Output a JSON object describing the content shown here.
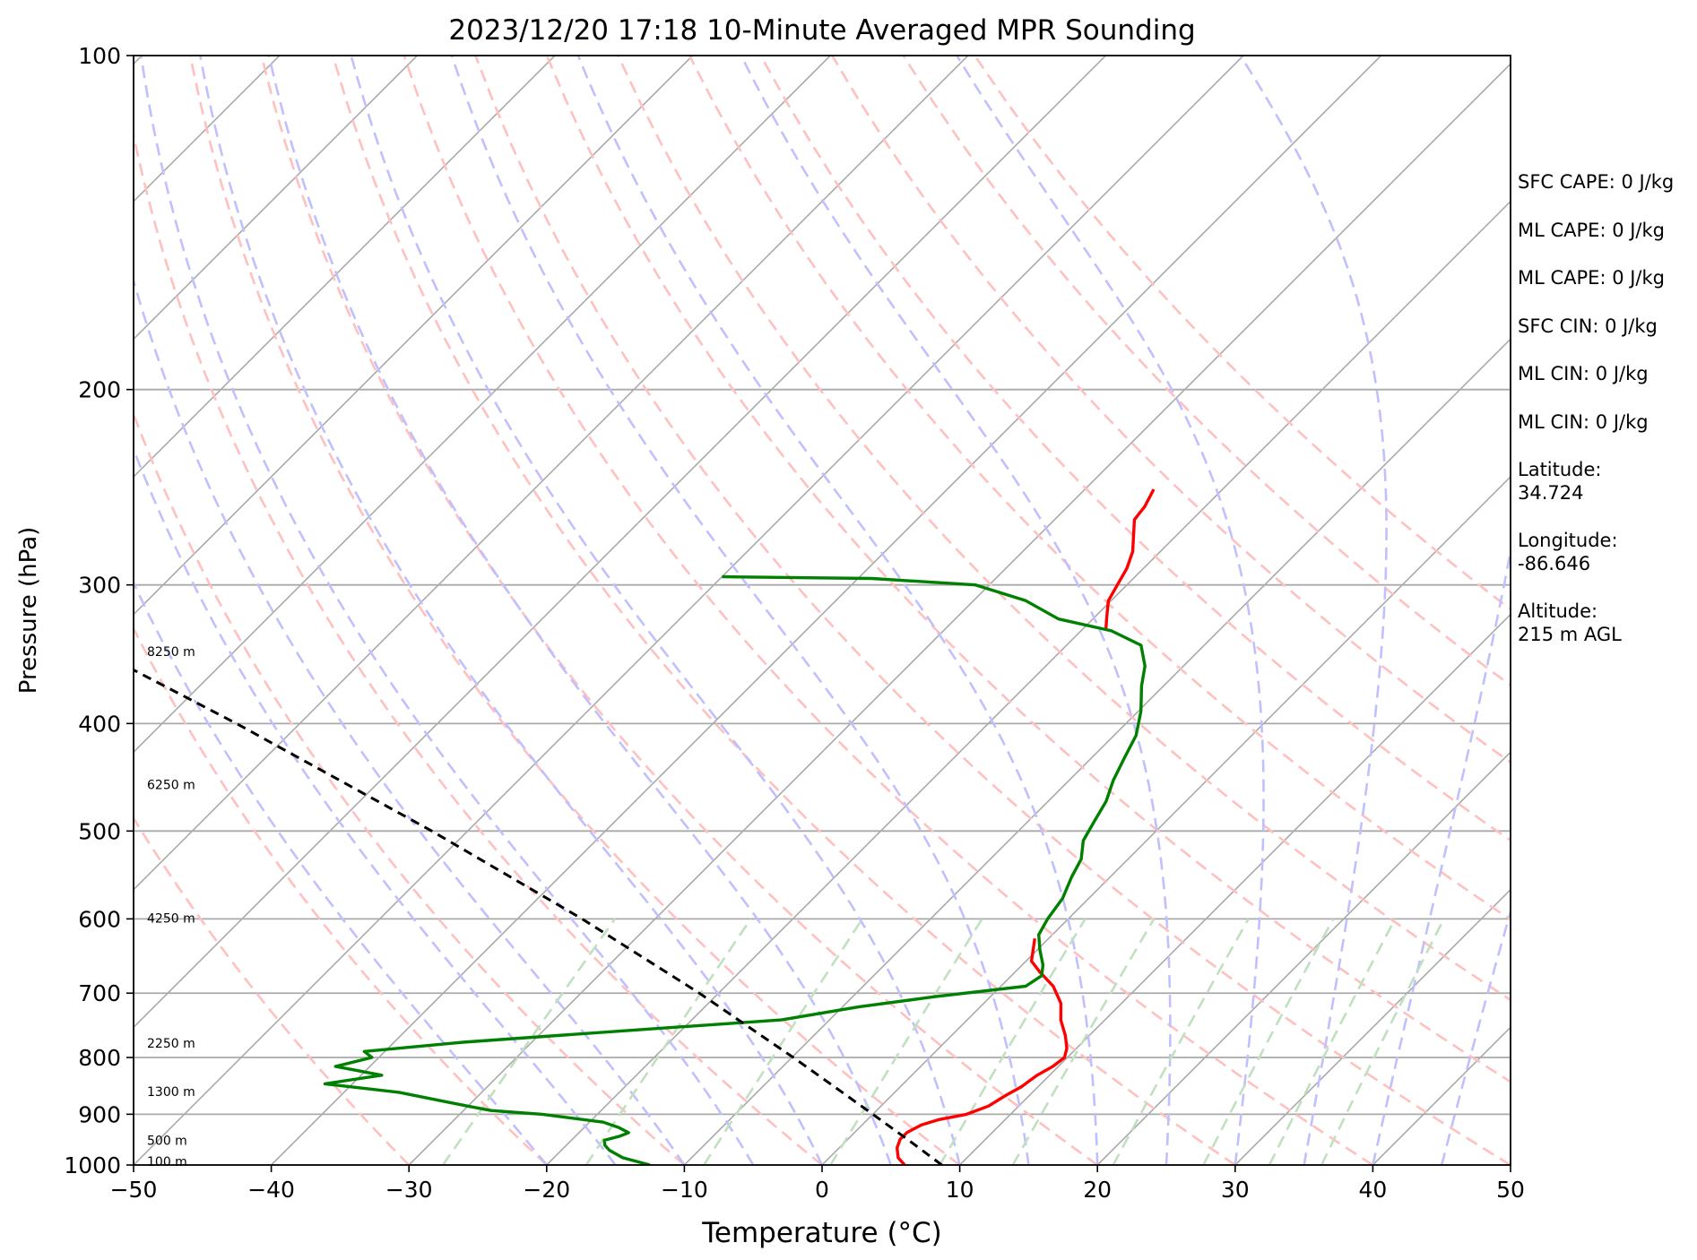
{
  "chart_data": {
    "type": "line",
    "subtype": "skew-t log-p diagram",
    "title": "2023/12/20 17:18 10-Minute Averaged MPR Sounding",
    "xlabel": "Temperature (°C)",
    "ylabel": "Pressure (hPa)",
    "xlim": [
      -50,
      50
    ],
    "ylim": [
      1000,
      100
    ],
    "y_scale": "log",
    "x_ticks": [
      "−50",
      "−40",
      "−30",
      "−20",
      "−10",
      "0",
      "10",
      "20",
      "30",
      "40",
      "50"
    ],
    "y_ticks": [
      "100",
      "200",
      "300",
      "400",
      "500",
      "600",
      "700",
      "800",
      "900",
      "1000"
    ],
    "grid": true,
    "series": [
      {
        "role": "temperature",
        "color": "#ff0000",
        "points": [
          {
            "p": 1000,
            "t": 6.0
          },
          {
            "p": 985,
            "t": 5.0
          },
          {
            "p": 965,
            "t": 4.2
          },
          {
            "p": 948,
            "t": 3.8
          },
          {
            "p": 935,
            "t": 3.8
          },
          {
            "p": 920,
            "t": 4.3
          },
          {
            "p": 910,
            "t": 5.2
          },
          {
            "p": 900,
            "t": 6.8
          },
          {
            "p": 885,
            "t": 7.8
          },
          {
            "p": 865,
            "t": 8.3
          },
          {
            "p": 850,
            "t": 8.8
          },
          {
            "p": 830,
            "t": 9.1
          },
          {
            "p": 815,
            "t": 9.6
          },
          {
            "p": 800,
            "t": 9.8
          },
          {
            "p": 785,
            "t": 9.3
          },
          {
            "p": 765,
            "t": 8.3
          },
          {
            "p": 740,
            "t": 6.8
          },
          {
            "p": 715,
            "t": 5.6
          },
          {
            "p": 690,
            "t": 3.8
          },
          {
            "p": 670,
            "t": 1.8
          },
          {
            "p": 655,
            "t": 0.4
          },
          {
            "p": 625,
            "t": -1.0
          }
        ]
      },
      {
        "role": "temperature-upper",
        "color": "#ff0000",
        "points": [
          {
            "p": 330,
            "t": -18.2
          },
          {
            "p": 320,
            "t": -19.2
          },
          {
            "p": 310,
            "t": -20.2
          },
          {
            "p": 300,
            "t": -20.7
          },
          {
            "p": 290,
            "t": -21.2
          },
          {
            "p": 280,
            "t": -22.0
          },
          {
            "p": 270,
            "t": -23.2
          },
          {
            "p": 262,
            "t": -24.2
          },
          {
            "p": 255,
            "t": -24.4
          },
          {
            "p": 246,
            "t": -25.0
          }
        ]
      },
      {
        "role": "dewpoint",
        "color": "#008000",
        "points": [
          {
            "p": 1000,
            "t": -12.5
          },
          {
            "p": 985,
            "t": -15.0
          },
          {
            "p": 970,
            "t": -16.5
          },
          {
            "p": 960,
            "t": -17.2
          },
          {
            "p": 950,
            "t": -17.6
          },
          {
            "p": 942,
            "t": -16.8
          },
          {
            "p": 935,
            "t": -16.4
          },
          {
            "p": 925,
            "t": -17.5
          },
          {
            "p": 915,
            "t": -19.0
          },
          {
            "p": 900,
            "t": -24.0
          },
          {
            "p": 893,
            "t": -28.0
          },
          {
            "p": 885,
            "t": -30.0
          },
          {
            "p": 860,
            "t": -36.0
          },
          {
            "p": 845,
            "t": -42.0
          },
          {
            "p": 830,
            "t": -38.5
          },
          {
            "p": 815,
            "t": -42.5
          },
          {
            "p": 800,
            "t": -40.5
          },
          {
            "p": 790,
            "t": -41.5
          },
          {
            "p": 775,
            "t": -35.0
          },
          {
            "p": 755,
            "t": -23.0
          },
          {
            "p": 740,
            "t": -13.5
          },
          {
            "p": 720,
            "t": -8.8
          },
          {
            "p": 705,
            "t": -4.0
          },
          {
            "p": 690,
            "t": 1.8
          },
          {
            "p": 675,
            "t": 2.2
          },
          {
            "p": 660,
            "t": 1.5
          },
          {
            "p": 640,
            "t": 0.2
          },
          {
            "p": 620,
            "t": -1.0
          },
          {
            "p": 600,
            "t": -1.5
          },
          {
            "p": 575,
            "t": -1.9
          },
          {
            "p": 550,
            "t": -2.8
          },
          {
            "p": 530,
            "t": -3.4
          },
          {
            "p": 510,
            "t": -4.6
          },
          {
            "p": 490,
            "t": -5.2
          },
          {
            "p": 470,
            "t": -5.8
          },
          {
            "p": 450,
            "t": -6.8
          },
          {
            "p": 430,
            "t": -7.6
          },
          {
            "p": 410,
            "t": -8.4
          },
          {
            "p": 390,
            "t": -9.8
          },
          {
            "p": 370,
            "t": -11.6
          },
          {
            "p": 355,
            "t": -12.8
          },
          {
            "p": 340,
            "t": -14.6
          },
          {
            "p": 330,
            "t": -17.8
          },
          {
            "p": 322,
            "t": -22.5
          },
          {
            "p": 310,
            "t": -26.2
          },
          {
            "p": 300,
            "t": -31.0
          },
          {
            "p": 296,
            "t": -39.0
          },
          {
            "p": 295,
            "t": -50.0
          }
        ]
      },
      {
        "role": "parcel",
        "color": "#000000",
        "dashed": true,
        "points": [
          {
            "p": 1000,
            "t": 8.7
          },
          {
            "p": 950,
            "t": 4.5
          },
          {
            "p": 900,
            "t": 0.0
          },
          {
            "p": 850,
            "t": -4.8
          },
          {
            "p": 800,
            "t": -9.9
          },
          {
            "p": 700,
            "t": -21.4
          },
          {
            "p": 600,
            "t": -35.3
          },
          {
            "p": 500,
            "t": -52.6
          },
          {
            "p": 400,
            "t": -74.6
          },
          {
            "p": 300,
            "t": -104.0
          },
          {
            "p": 265,
            "t": -116.2
          }
        ]
      }
    ],
    "height_labels": [
      {
        "p": 994,
        "text": "100 m"
      },
      {
        "p": 952,
        "text": "500 m"
      },
      {
        "p": 860,
        "text": "1300 m"
      },
      {
        "p": 778,
        "text": "2250 m"
      },
      {
        "p": 600,
        "text": "4250 m"
      },
      {
        "p": 455,
        "text": "6250 m"
      },
      {
        "p": 345,
        "text": "8250 m"
      }
    ],
    "reference_lines": {
      "isotherm_color": "#aaaaaa",
      "dry_adiabat_color": "#ffc0c0",
      "moist_adiabat_color": "#c0c0ff",
      "mixing_ratio_color": "#c0e0c0",
      "dry_adiabats_theta_C": [
        -30,
        -20,
        -10,
        0,
        10,
        20,
        30,
        40,
        50,
        60,
        70,
        80,
        90,
        100,
        110,
        120
      ],
      "moist_adiabats_start_C": [
        -20,
        -15,
        -10,
        -5,
        0,
        5,
        10,
        15,
        20,
        25,
        30,
        35,
        40,
        45
      ],
      "mixing_ratios_gkg": [
        0.4,
        1,
        2,
        4,
        7,
        10,
        16,
        24,
        32,
        40
      ]
    }
  },
  "stats": {
    "sfc_cape": "SFC CAPE: 0 J/kg",
    "ml_cape": "ML CAPE: 0 J/kg",
    "ml_cape_2": "ML CAPE: 0 J/kg",
    "sfc_cin": "SFC CIN: 0 J/kg",
    "ml_cin": "ML CIN: 0 J/kg",
    "ml_cin_2": "ML CIN: 0 J/kg",
    "latitude": "Latitude:\n34.724",
    "longitude": "Longitude:\n-86.646",
    "altitude": "Altitude:\n215 m AGL"
  }
}
